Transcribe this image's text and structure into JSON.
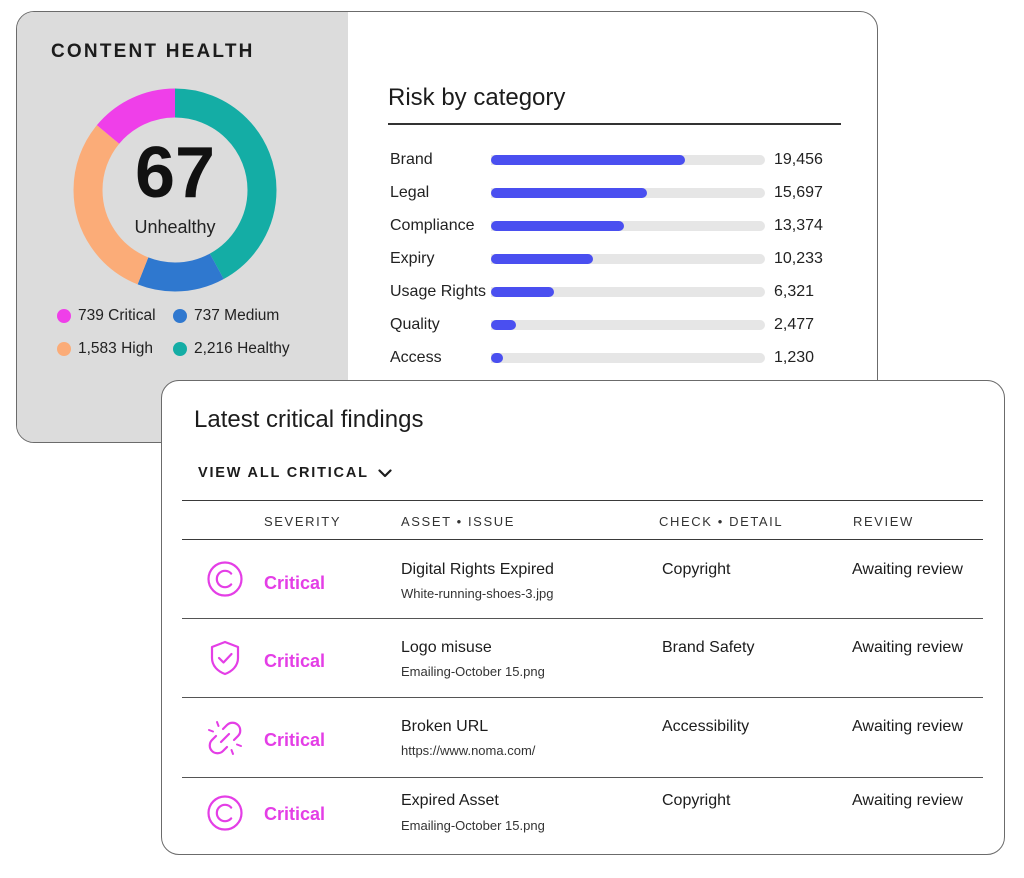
{
  "content_health": {
    "title": "CONTENT HEALTH",
    "score": "67",
    "status": "Unhealthy",
    "segments": [
      {
        "label": "739 Critical",
        "value": 739,
        "color": "#ef3fe9"
      },
      {
        "label": "737 Medium",
        "value": 737,
        "color": "#2f78cf"
      },
      {
        "label": "1,583 High",
        "value": 1583,
        "color": "#fbac78"
      },
      {
        "label": "2,216 Healthy",
        "value": 2216,
        "color": "#14ada5"
      }
    ]
  },
  "risk": {
    "title": "Risk by category",
    "bar_color": "#4a4ff0",
    "max": 27500,
    "rows": [
      {
        "label": "Brand",
        "value": 19456,
        "display": "19,456"
      },
      {
        "label": "Legal",
        "value": 15697,
        "display": "15,697"
      },
      {
        "label": "Compliance",
        "value": 13374,
        "display": "13,374"
      },
      {
        "label": "Expiry",
        "value": 10233,
        "display": "10,233"
      },
      {
        "label": "Usage Rights",
        "value": 6321,
        "display": "6,321"
      },
      {
        "label": "Quality",
        "value": 2477,
        "display": "2,477"
      },
      {
        "label": "Access",
        "value": 1230,
        "display": "1,230"
      }
    ]
  },
  "findings": {
    "title": "Latest critical findings",
    "view_all": "VIEW ALL CRITICAL",
    "columns": {
      "severity": "SEVERITY",
      "asset_issue": "ASSET • ISSUE",
      "check_detail": "CHECK • DETAIL",
      "review": "REVIEW"
    },
    "rows": [
      {
        "icon": "copyright-icon",
        "severity": "Critical",
        "issue": "Digital Rights Expired",
        "file": "White-running-shoes-3.jpg",
        "check": "Copyright",
        "review": "Awaiting review"
      },
      {
        "icon": "shield-check-icon",
        "severity": "Critical",
        "issue": "Logo misuse",
        "file": "Emailing-October 15.png",
        "check": "Brand Safety",
        "review": "Awaiting review"
      },
      {
        "icon": "broken-link-icon",
        "severity": "Critical",
        "issue": "Broken URL",
        "file": "https://www.noma.com/",
        "check": "Accessibility",
        "review": "Awaiting review"
      },
      {
        "icon": "copyright-icon",
        "severity": "Critical",
        "issue": "Expired Asset",
        "file": "Emailing-October 15.png",
        "check": "Copyright",
        "review": "Awaiting review"
      }
    ],
    "critical_color": "#e43ee6"
  }
}
